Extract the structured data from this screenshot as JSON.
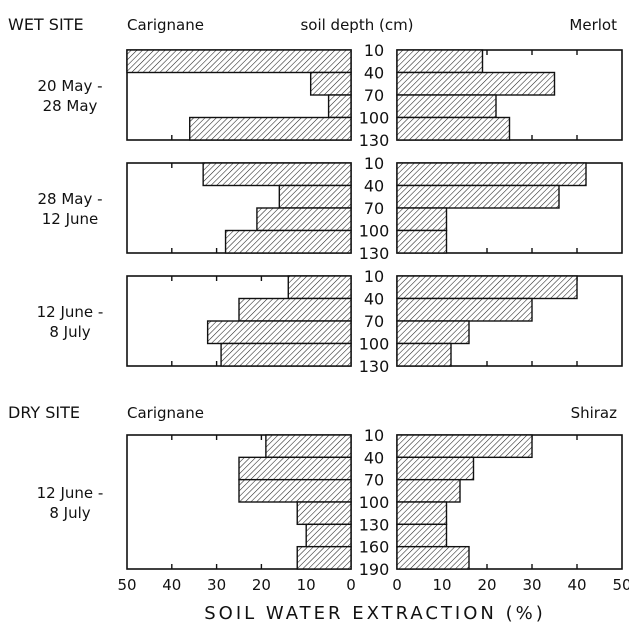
{
  "headers": {
    "wet_site": "WET SITE",
    "wet_left_cultivar": "Carignane",
    "soil_depth": "soil depth (cm)",
    "wet_right_cultivar": "Merlot",
    "dry_site": "DRY SITE",
    "dry_left_cultivar": "Carignane",
    "dry_right_cultivar": "Shiraz"
  },
  "xlabel": "SOIL WATER EXTRACTION (%)",
  "x_ticks_left": [
    "50",
    "40",
    "30",
    "20",
    "10",
    "0"
  ],
  "x_ticks_right": [
    "0",
    "10",
    "20",
    "30",
    "40",
    "50"
  ],
  "colors": {
    "ink": "#111111",
    "hatch": "#222222",
    "background": "#ffffff"
  },
  "chart_data": [
    {
      "type": "bar",
      "title": "",
      "period_lines": [
        "20 May -",
        "28 May"
      ],
      "depth_labels": [
        "10",
        "40",
        "70",
        "100",
        "130"
      ],
      "xlim": [
        0,
        50
      ],
      "series": [
        {
          "name": "Carignane",
          "side": "left",
          "values": [
            50,
            9,
            5,
            36
          ]
        },
        {
          "name": "Merlot",
          "side": "right",
          "values": [
            19,
            35,
            22,
            25
          ]
        }
      ]
    },
    {
      "type": "bar",
      "title": "",
      "period_lines": [
        "28 May -",
        "12 June"
      ],
      "depth_labels": [
        "10",
        "40",
        "70",
        "100",
        "130"
      ],
      "xlim": [
        0,
        50
      ],
      "series": [
        {
          "name": "Carignane",
          "side": "left",
          "values": [
            33,
            16,
            21,
            28
          ]
        },
        {
          "name": "Merlot",
          "side": "right",
          "values": [
            42,
            36,
            11,
            11
          ]
        }
      ]
    },
    {
      "type": "bar",
      "title": "",
      "period_lines": [
        "12 June -",
        "8 July"
      ],
      "depth_labels": [
        "10",
        "40",
        "70",
        "100",
        "130"
      ],
      "xlim": [
        0,
        50
      ],
      "series": [
        {
          "name": "Carignane",
          "side": "left",
          "values": [
            14,
            25,
            32,
            29
          ]
        },
        {
          "name": "Merlot",
          "side": "right",
          "values": [
            40,
            30,
            16,
            12
          ]
        }
      ]
    },
    {
      "type": "bar",
      "title": "",
      "period_lines": [
        "12 June -",
        "8 July"
      ],
      "depth_labels": [
        "10",
        "40",
        "70",
        "100",
        "130",
        "160",
        "190"
      ],
      "xlim": [
        0,
        50
      ],
      "series": [
        {
          "name": "Carignane",
          "side": "left",
          "values": [
            19,
            25,
            25,
            12,
            10,
            12
          ]
        },
        {
          "name": "Shiraz",
          "side": "right",
          "values": [
            30,
            17,
            14,
            11,
            11,
            16
          ]
        }
      ]
    }
  ]
}
